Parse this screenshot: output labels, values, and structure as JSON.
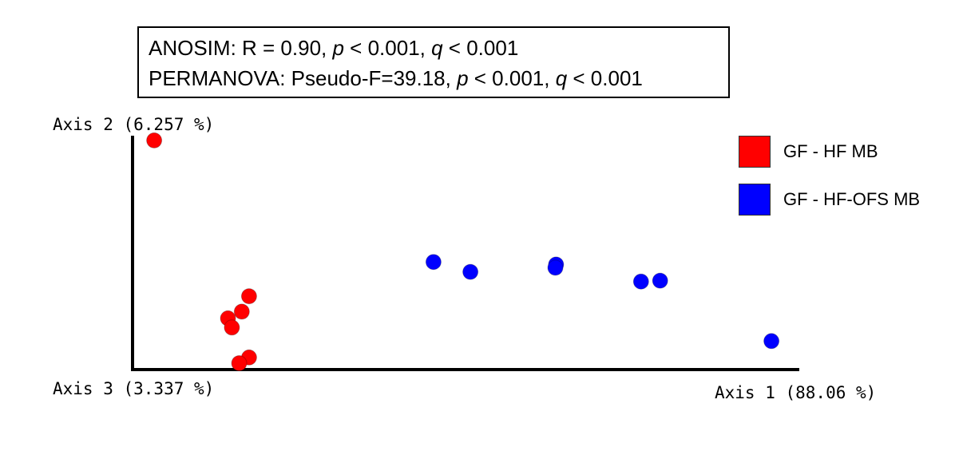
{
  "stats": {
    "line1": {
      "prefix": "ANOSIM: R = 0.90, ",
      "p_sym": "p",
      "p_val": " < 0.001, ",
      "q_sym": "q",
      "q_val": " < 0.001"
    },
    "line2": {
      "prefix": "PERMANOVA: Pseudo-F=39.18, ",
      "p_sym": "p",
      "p_val": " < 0.001, ",
      "q_sym": "q",
      "q_val": " < 0.001"
    }
  },
  "chart_data": {
    "type": "scatter",
    "title": "",
    "xlabel": "Axis 1 (88.06 %)",
    "ylabel": "Axis 2 (6.257 %)",
    "zlabel": "Axis 3 (3.337 %)",
    "xlim": [
      0,
      100
    ],
    "ylim": [
      0,
      100
    ],
    "grid": false,
    "legend_position": "top-right",
    "series": [
      {
        "name": "GF - HF MB",
        "color": "#ff0000",
        "points": [
          {
            "x": 2.8,
            "y": 99.0
          },
          {
            "x": 17.2,
            "y": 31.2
          },
          {
            "x": 16.1,
            "y": 24.5
          },
          {
            "x": 14.0,
            "y": 21.6
          },
          {
            "x": 14.6,
            "y": 17.6
          },
          {
            "x": 17.2,
            "y": 4.6
          },
          {
            "x": 15.7,
            "y": 2.1
          }
        ]
      },
      {
        "name": "GF - HF-OFS MB",
        "color": "#0000ff",
        "points": [
          {
            "x": 45.2,
            "y": 46.1
          },
          {
            "x": 50.8,
            "y": 41.8
          },
          {
            "x": 63.8,
            "y": 45.0
          },
          {
            "x": 63.7,
            "y": 43.6
          },
          {
            "x": 76.7,
            "y": 37.6
          },
          {
            "x": 79.6,
            "y": 38.0
          },
          {
            "x": 96.5,
            "y": 11.7
          }
        ]
      }
    ]
  }
}
